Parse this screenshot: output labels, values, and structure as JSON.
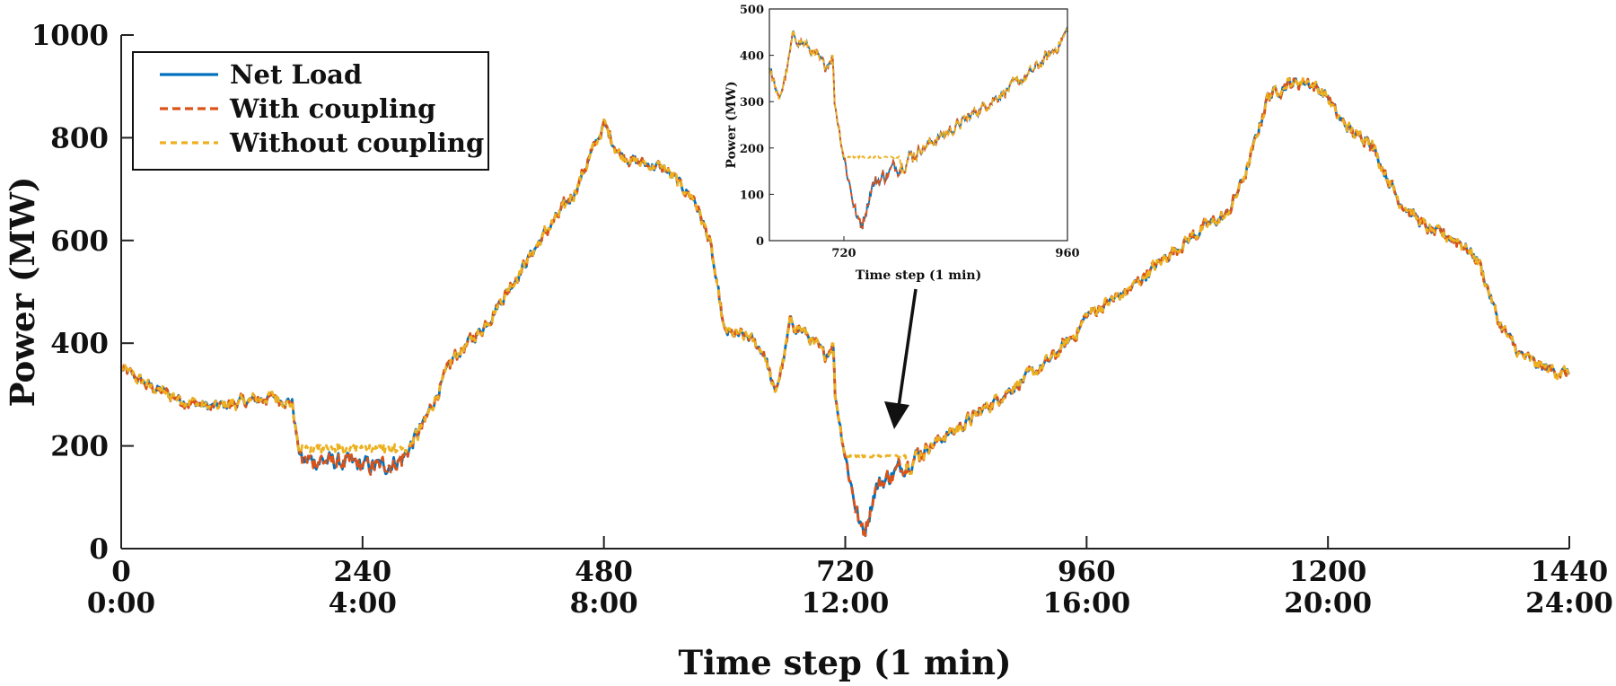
{
  "chart_data": {
    "type": "line",
    "title": "",
    "xlabel": "Time step (1 min)",
    "ylabel": "Power (MW)",
    "xlim": [
      0,
      1440
    ],
    "ylim": [
      0,
      1000
    ],
    "x_ticks": [
      0,
      240,
      480,
      720,
      960,
      1200,
      1440
    ],
    "x_tick_labels": [
      "0",
      "240",
      "480",
      "720",
      "960",
      "1200",
      "1440"
    ],
    "x_tick_sublabels": [
      "0:00",
      "4:00",
      "8:00",
      "12:00",
      "16:00",
      "20:00",
      "24:00"
    ],
    "y_ticks": [
      0,
      200,
      400,
      600,
      800,
      1000
    ],
    "y_tick_labels": [
      "0",
      "200",
      "400",
      "600",
      "800",
      "1000"
    ],
    "legend": {
      "placement": "top-left",
      "entries": [
        "Net Load",
        "With coupling",
        "Without coupling"
      ]
    },
    "series": [
      {
        "name": "Net Load",
        "color": "#0072BD",
        "style": "solid"
      },
      {
        "name": "With coupling",
        "color": "#D95319",
        "style": "dashed"
      },
      {
        "name": "Without coupling",
        "color": "#EDB120",
        "style": "dotted-dash"
      }
    ],
    "net_load_profile": [
      [
        0,
        350
      ],
      [
        30,
        315
      ],
      [
        60,
        290
      ],
      [
        90,
        275
      ],
      [
        120,
        285
      ],
      [
        150,
        295
      ],
      [
        170,
        285
      ],
      [
        175,
        210
      ],
      [
        180,
        170
      ],
      [
        200,
        172
      ],
      [
        240,
        162
      ],
      [
        260,
        160
      ],
      [
        280,
        175
      ],
      [
        300,
        240
      ],
      [
        330,
        370
      ],
      [
        360,
        430
      ],
      [
        390,
        520
      ],
      [
        420,
        610
      ],
      [
        450,
        690
      ],
      [
        480,
        825
      ],
      [
        495,
        770
      ],
      [
        510,
        755
      ],
      [
        540,
        740
      ],
      [
        570,
        680
      ],
      [
        585,
        600
      ],
      [
        600,
        420
      ],
      [
        625,
        410
      ],
      [
        640,
        380
      ],
      [
        650,
        300
      ],
      [
        660,
        380
      ],
      [
        665,
        440
      ],
      [
        680,
        420
      ],
      [
        700,
        375
      ],
      [
        708,
        400
      ],
      [
        710,
        300
      ],
      [
        720,
        180
      ],
      [
        735,
        40
      ],
      [
        740,
        40
      ],
      [
        750,
        120
      ],
      [
        770,
        150
      ],
      [
        800,
        195
      ],
      [
        840,
        245
      ],
      [
        880,
        305
      ],
      [
        920,
        360
      ],
      [
        950,
        420
      ],
      [
        960,
        455
      ],
      [
        1000,
        500
      ],
      [
        1040,
        570
      ],
      [
        1080,
        630
      ],
      [
        1100,
        650
      ],
      [
        1120,
        740
      ],
      [
        1140,
        880
      ],
      [
        1160,
        905
      ],
      [
        1180,
        910
      ],
      [
        1200,
        880
      ],
      [
        1210,
        840
      ],
      [
        1230,
        800
      ],
      [
        1240,
        805
      ],
      [
        1250,
        760
      ],
      [
        1270,
        680
      ],
      [
        1300,
        620
      ],
      [
        1330,
        600
      ],
      [
        1350,
        560
      ],
      [
        1370,
        440
      ],
      [
        1390,
        380
      ],
      [
        1410,
        355
      ],
      [
        1440,
        340
      ]
    ],
    "without_coupling_floor_segments": [
      {
        "from": 180,
        "to": 300,
        "value": 195
      },
      {
        "from": 720,
        "to": 780,
        "value": 180
      }
    ],
    "inset": {
      "xlabel": "Time step (1 min)",
      "ylabel": "Power (MW)",
      "xlim": [
        640,
        960
      ],
      "ylim": [
        0,
        500
      ],
      "x_ticks": [
        720,
        960
      ],
      "x_tick_labels": [
        "720",
        "960"
      ],
      "y_ticks": [
        0,
        100,
        200,
        300,
        400,
        500
      ],
      "y_tick_labels": [
        "0",
        "100",
        "200",
        "300",
        "400",
        "500"
      ]
    }
  }
}
